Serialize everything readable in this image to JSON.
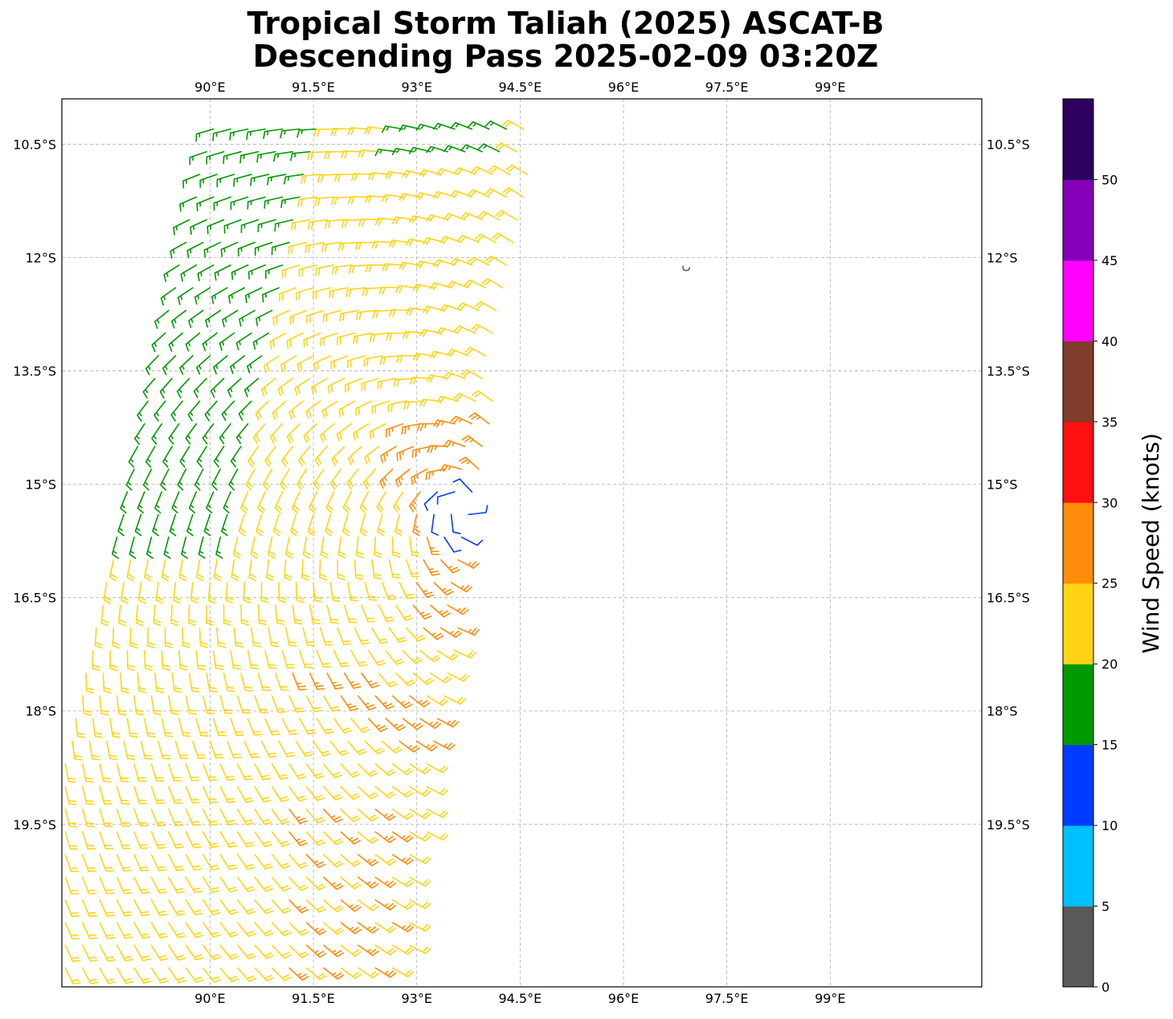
{
  "title_line1": "Tropical Storm Taliah (2025) ASCAT-B",
  "title_line2": "Descending Pass 2025-02-09 03:20Z",
  "map": {
    "lon_range": [
      87.85,
      101.2
    ],
    "lat_range": [
      -21.65,
      -9.9
    ],
    "lon_ticks": [
      {
        "value": 90.0,
        "label": "90°E"
      },
      {
        "value": 91.5,
        "label": "91.5°E"
      },
      {
        "value": 93.0,
        "label": "93°E"
      },
      {
        "value": 94.5,
        "label": "94.5°E"
      },
      {
        "value": 96.0,
        "label": "96°E"
      },
      {
        "value": 97.5,
        "label": "97.5°E"
      },
      {
        "value": 99.0,
        "label": "99°E"
      }
    ],
    "lat_ticks": [
      {
        "value": -10.5,
        "label": "10.5°S"
      },
      {
        "value": -12.0,
        "label": "12°S"
      },
      {
        "value": -13.5,
        "label": "13.5°S"
      },
      {
        "value": -15.0,
        "label": "15°S"
      },
      {
        "value": -16.5,
        "label": "16.5°S"
      },
      {
        "value": -18.0,
        "label": "18°S"
      },
      {
        "value": -19.5,
        "label": "19.5°S"
      }
    ],
    "gridlines": true,
    "storm_center_approx": {
      "lon": 93.7,
      "lat": -15.3
    },
    "land_feature": {
      "name": "small island outline",
      "lon": 96.9,
      "lat": -12.15,
      "color": "#555555"
    }
  },
  "colorbar": {
    "label": "Wind Speed (knots)",
    "bins": [
      {
        "min": 0,
        "max": 5,
        "color": "#595959"
      },
      {
        "min": 5,
        "max": 10,
        "color": "#00bfff"
      },
      {
        "min": 10,
        "max": 15,
        "color": "#003cff"
      },
      {
        "min": 15,
        "max": 20,
        "color": "#009900"
      },
      {
        "min": 20,
        "max": 25,
        "color": "#ffd414"
      },
      {
        "min": 25,
        "max": 30,
        "color": "#ff8c0a"
      },
      {
        "min": 30,
        "max": 35,
        "color": "#ff1010"
      },
      {
        "min": 35,
        "max": 40,
        "color": "#7f3c2a"
      },
      {
        "min": 40,
        "max": 45,
        "color": "#ff00ff"
      },
      {
        "min": 45,
        "max": 50,
        "color": "#8400b8"
      },
      {
        "min": 50,
        "max": 55,
        "color": "#2e0060"
      }
    ],
    "tick_labels": [
      "0",
      "5",
      "10",
      "15",
      "20",
      "25",
      "30",
      "35",
      "40",
      "45",
      "50"
    ]
  },
  "barbs": {
    "units": "knots",
    "description_fields": "wind vectors from ASCAT-B scatterometer swath; colored by speed bin",
    "rows": [
      {
        "lat": -10.3,
        "lon_start": 90.05,
        "lon_end": 94.6
      },
      {
        "lat": -10.6,
        "lon_start": 89.95,
        "lon_end": 94.65
      },
      {
        "lat": -10.9,
        "lon_start": 89.85,
        "lon_end": 94.6
      },
      {
        "lat": -11.2,
        "lon_start": 89.8,
        "lon_end": 94.55
      },
      {
        "lat": -11.5,
        "lon_start": 89.7,
        "lon_end": 94.5
      },
      {
        "lat": -11.8,
        "lon_start": 89.65,
        "lon_end": 94.45
      },
      {
        "lat": -12.1,
        "lon_start": 89.55,
        "lon_end": 94.4
      },
      {
        "lat": -12.4,
        "lon_start": 89.5,
        "lon_end": 94.35
      },
      {
        "lat": -12.7,
        "lon_start": 89.4,
        "lon_end": 94.3
      },
      {
        "lat": -13.0,
        "lon_start": 89.35,
        "lon_end": 94.25
      },
      {
        "lat": -13.3,
        "lon_start": 89.25,
        "lon_end": 94.2
      },
      {
        "lat": -13.6,
        "lon_start": 89.2,
        "lon_end": 94.15
      },
      {
        "lat": -13.9,
        "lon_start": 89.1,
        "lon_end": 94.1
      },
      {
        "lat": -14.2,
        "lon_start": 89.05,
        "lon_end": 94.05
      },
      {
        "lat": -14.5,
        "lon_start": 88.95,
        "lon_end": 94.0
      },
      {
        "lat": -14.8,
        "lon_start": 88.9,
        "lon_end": 93.95
      },
      {
        "lat": -15.1,
        "lon_start": 88.8,
        "lon_end": 93.9
      },
      {
        "lat": -15.4,
        "lon_start": 88.75,
        "lon_end": 93.85
      },
      {
        "lat": -15.7,
        "lon_start": 88.65,
        "lon_end": 93.8
      },
      {
        "lat": -16.0,
        "lon_start": 88.6,
        "lon_end": 93.75
      },
      {
        "lat": -16.3,
        "lon_start": 88.5,
        "lon_end": 93.7
      },
      {
        "lat": -16.6,
        "lon_start": 88.45,
        "lon_end": 93.65
      },
      {
        "lat": -16.9,
        "lon_start": 88.35,
        "lon_end": 93.6
      },
      {
        "lat": -17.2,
        "lon_start": 88.3,
        "lon_end": 93.55
      },
      {
        "lat": -17.5,
        "lon_start": 88.2,
        "lon_end": 93.5
      },
      {
        "lat": -17.8,
        "lon_start": 88.15,
        "lon_end": 93.45
      },
      {
        "lat": -18.1,
        "lon_start": 88.05,
        "lon_end": 93.4
      },
      {
        "lat": -18.4,
        "lon_start": 88.0,
        "lon_end": 93.35
      },
      {
        "lat": -18.7,
        "lon_start": 87.9,
        "lon_end": 93.3
      },
      {
        "lat": -19.0,
        "lon_start": 87.9,
        "lon_end": 93.25
      },
      {
        "lat": -19.3,
        "lon_start": 87.9,
        "lon_end": 93.2
      },
      {
        "lat": -19.6,
        "lon_start": 87.9,
        "lon_end": 93.15
      },
      {
        "lat": -19.9,
        "lon_start": 87.9,
        "lon_end": 93.1
      },
      {
        "lat": -20.2,
        "lon_start": 87.9,
        "lon_end": 93.05
      },
      {
        "lat": -20.5,
        "lon_start": 87.9,
        "lon_end": 93.0
      },
      {
        "lat": -20.8,
        "lon_start": 87.9,
        "lon_end": 92.95
      },
      {
        "lat": -21.1,
        "lon_start": 87.9,
        "lon_end": 92.9
      },
      {
        "lat": -21.4,
        "lon_start": 87.9,
        "lon_end": 92.85
      }
    ],
    "spacing_lon": 0.25,
    "speed_regions": [
      {
        "note": "west / north-west band",
        "speed_kt": 17
      },
      {
        "note": "main circulation and south",
        "speed_kt": 22
      },
      {
        "note": "north-east of center",
        "speed_kt": 27
      },
      {
        "note": "south-west quadrant",
        "speed_kt": 27
      },
      {
        "note": "near center",
        "speed_kt": 12
      }
    ]
  }
}
